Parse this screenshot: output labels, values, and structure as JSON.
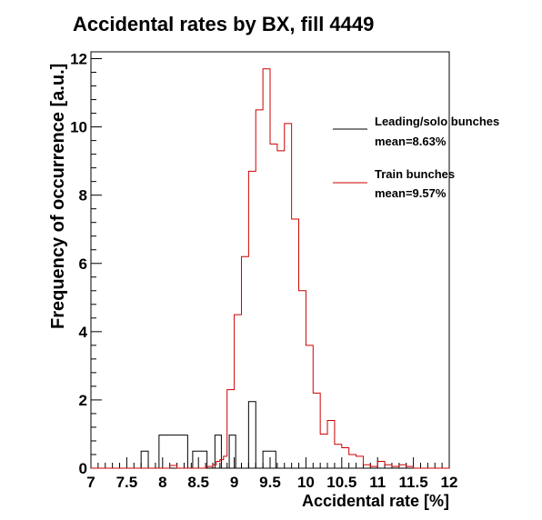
{
  "chart_data": {
    "type": "histogram",
    "title": "Accidental rates by BX, fill 4449",
    "xlabel": "Accidental rate [%]",
    "ylabel": "Frequency of occurrence [a.u.]",
    "xlim": [
      7,
      12
    ],
    "ylim": [
      0,
      12.2
    ],
    "x_ticks": [
      "7",
      "7.5",
      "8",
      "8.5",
      "9",
      "9.5",
      "10",
      "10.5",
      "11",
      "11.5",
      "12"
    ],
    "x_tick_values": [
      7,
      7.5,
      8,
      8.5,
      9,
      9.5,
      10,
      10.5,
      11,
      11.5,
      12
    ],
    "y_ticks": [
      "0",
      "2",
      "4",
      "6",
      "8",
      "10",
      "12"
    ],
    "y_tick_values": [
      0,
      2,
      4,
      6,
      8,
      10,
      12
    ],
    "grid": false,
    "legend_position": "top-right",
    "series": [
      {
        "name": "Leading/solo bunches",
        "stat": "mean=8.63%",
        "color": "#000000",
        "bins": [
          [
            7.0,
            7.7,
            0
          ],
          [
            7.7,
            7.8,
            0.5
          ],
          [
            7.8,
            7.95,
            0
          ],
          [
            7.95,
            8.35,
            0.97
          ],
          [
            8.35,
            8.42,
            0
          ],
          [
            8.42,
            8.62,
            0.5
          ],
          [
            8.62,
            8.73,
            0
          ],
          [
            8.73,
            8.82,
            0.97
          ],
          [
            8.82,
            8.93,
            0
          ],
          [
            8.93,
            9.02,
            0.97
          ],
          [
            9.02,
            9.2,
            0
          ],
          [
            9.2,
            9.3,
            1.95
          ],
          [
            9.3,
            9.4,
            0
          ],
          [
            9.4,
            9.58,
            0.5
          ],
          [
            9.58,
            12.0,
            0
          ]
        ]
      },
      {
        "name": "Train bunches",
        "stat": "mean=9.57%",
        "color": "#cc0000",
        "bins": [
          [
            7.0,
            8.1,
            0
          ],
          [
            8.1,
            8.2,
            0.08
          ],
          [
            8.2,
            8.6,
            0
          ],
          [
            8.6,
            8.7,
            0.05
          ],
          [
            8.7,
            8.75,
            0.1
          ],
          [
            8.75,
            8.8,
            0.2
          ],
          [
            8.8,
            8.85,
            0.25
          ],
          [
            8.85,
            8.9,
            0.35
          ],
          [
            8.9,
            9.0,
            2.3
          ],
          [
            9.0,
            9.1,
            4.5
          ],
          [
            9.1,
            9.2,
            6.2
          ],
          [
            9.2,
            9.3,
            8.7
          ],
          [
            9.3,
            9.4,
            10.5
          ],
          [
            9.4,
            9.5,
            11.7
          ],
          [
            9.5,
            9.6,
            9.5
          ],
          [
            9.6,
            9.7,
            9.3
          ],
          [
            9.7,
            9.8,
            10.1
          ],
          [
            9.8,
            9.9,
            7.3
          ],
          [
            9.9,
            10.0,
            5.2
          ],
          [
            10.0,
            10.1,
            3.6
          ],
          [
            10.1,
            10.2,
            2.2
          ],
          [
            10.2,
            10.3,
            1.0
          ],
          [
            10.3,
            10.4,
            1.4
          ],
          [
            10.4,
            10.5,
            0.7
          ],
          [
            10.5,
            10.6,
            0.6
          ],
          [
            10.6,
            10.7,
            0.4
          ],
          [
            10.7,
            10.8,
            0.35
          ],
          [
            10.8,
            10.9,
            0.1
          ],
          [
            10.9,
            11.0,
            0.05
          ],
          [
            11.0,
            11.1,
            0.2
          ],
          [
            11.1,
            11.2,
            0.1
          ],
          [
            11.2,
            11.3,
            0.05
          ],
          [
            11.3,
            11.4,
            0.1
          ],
          [
            11.4,
            11.5,
            0.05
          ],
          [
            11.5,
            12.0,
            0
          ]
        ]
      }
    ]
  }
}
